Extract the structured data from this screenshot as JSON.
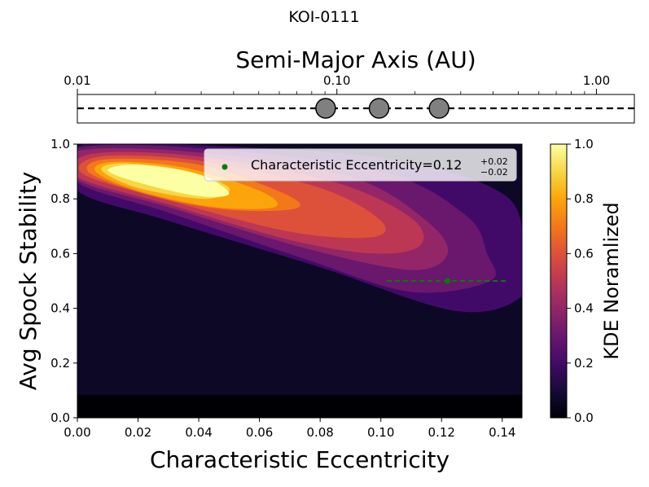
{
  "title": "KOI-0111",
  "chart_data": [
    {
      "type": "scatter",
      "xlabel": "Semi-Major Axis (AU)",
      "xscale": "log",
      "xlim": [
        0.01,
        1.4
      ],
      "xticks": [
        {
          "value": 0.01,
          "label": "0.01"
        },
        {
          "value": 0.1,
          "label": "0.10"
        },
        {
          "value": 1.0,
          "label": "1.00"
        }
      ],
      "series": [
        {
          "x": [
            0.0905,
            0.1454,
            0.2475
          ],
          "y": [
            0,
            0,
            0
          ]
        }
      ],
      "marker_color": "#808080",
      "line_style": "dashed"
    },
    {
      "type": "heatmap",
      "xlabel": "Characteristic Eccentricity",
      "ylabel": "Avg Spock Stability",
      "xlim": [
        0.0,
        0.1465
      ],
      "ylim": [
        0.0,
        1.0
      ],
      "xticks": [
        "0.00",
        "0.02",
        "0.04",
        "0.06",
        "0.08",
        "0.10",
        "0.12",
        "0.14"
      ],
      "yticks": [
        "0.0",
        "0.2",
        "0.4",
        "0.6",
        "0.8",
        "1.0"
      ],
      "kde_levels": [
        0.1,
        0.2,
        0.3,
        0.4,
        0.5,
        0.6,
        0.7,
        0.8,
        0.9
      ],
      "kde_peak": {
        "x": 0.03,
        "y": 0.86
      },
      "point": {
        "x": 0.122,
        "y": 0.5,
        "xerr_low": 0.02,
        "xerr_high": 0.02,
        "color": "#008000"
      },
      "legend": {
        "text": "Characteristic Eccentricity=0.12",
        "sup": "+0.02",
        "sub": "−0.02",
        "position": "top-right"
      },
      "colorbar": {
        "label": "KDE Noramlized",
        "colormap": "inferno",
        "range": [
          0.0,
          1.0
        ],
        "ticks": [
          "0.0",
          "0.2",
          "0.4",
          "0.6",
          "0.8",
          "1.0"
        ]
      }
    }
  ]
}
